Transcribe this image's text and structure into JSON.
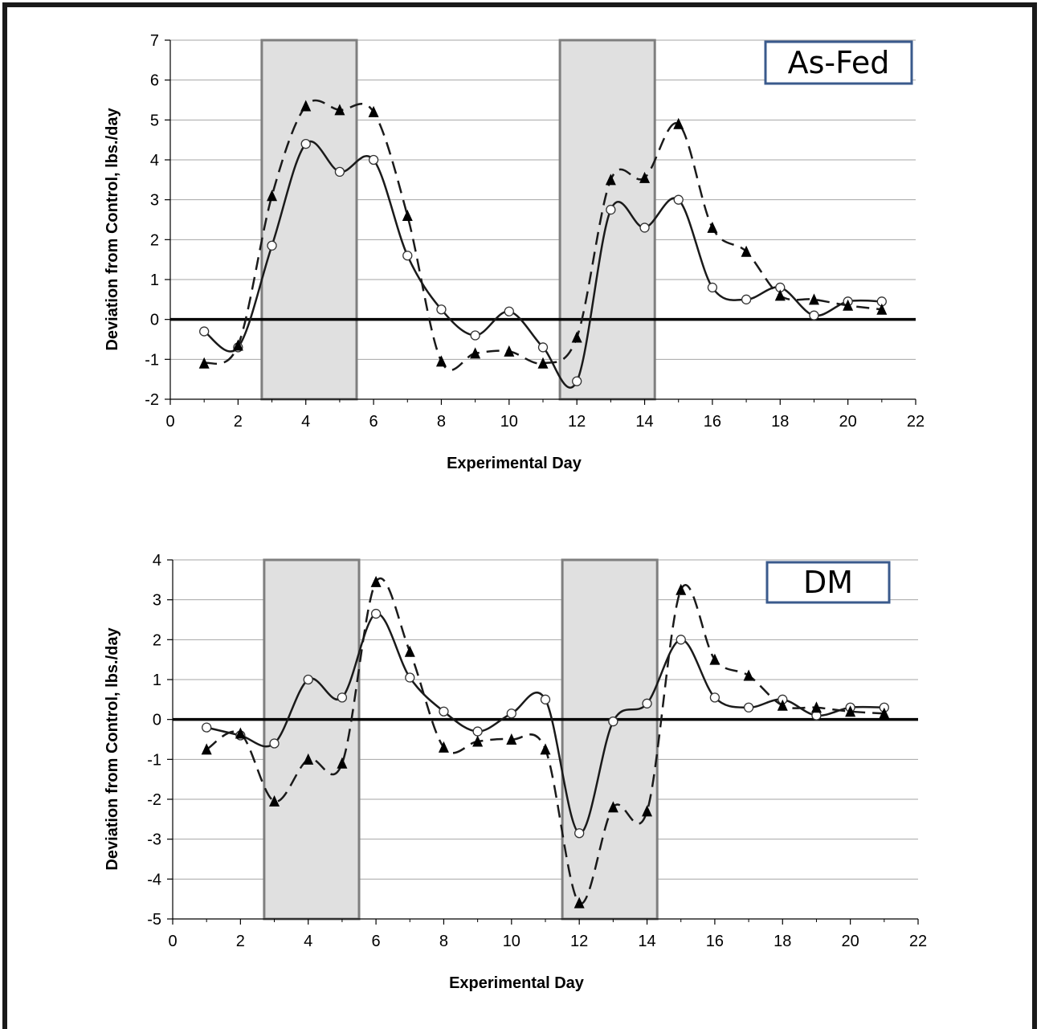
{
  "colors": {
    "shade_fill": "#e0e0e0",
    "shade_stroke": "#7f7f7f",
    "grid": "#a6a6a6",
    "series_a": "#1a1a1a",
    "series_b": "#1a1a1a",
    "tag_border": "#3a5a8c"
  },
  "chart_data": [
    {
      "type": "line",
      "tag": "As-Fed",
      "title": "",
      "xlabel": "Experimental Day",
      "ylabel": "Deviation from Control, lbs./day",
      "xlim": [
        0,
        22
      ],
      "ylim": [
        -2,
        7
      ],
      "xticks": [
        0,
        2,
        4,
        6,
        8,
        10,
        12,
        14,
        16,
        18,
        20,
        22
      ],
      "yticks": [
        -2,
        -1,
        0,
        1,
        2,
        3,
        4,
        5,
        6,
        7
      ],
      "grid": true,
      "shaded_ranges": [
        [
          2.7,
          5.5
        ],
        [
          11.5,
          14.3
        ]
      ],
      "series": [
        {
          "marker": "open-circle",
          "line": "solid",
          "x": [
            1,
            2,
            3,
            4,
            5,
            6,
            7,
            8,
            9,
            10,
            11,
            12,
            13,
            14,
            15,
            16,
            17,
            18,
            19,
            20,
            21
          ],
          "values": [
            -0.3,
            -0.7,
            1.85,
            4.4,
            3.7,
            4.0,
            1.6,
            0.25,
            -0.4,
            0.2,
            -0.7,
            -1.55,
            2.75,
            2.3,
            3.0,
            0.8,
            0.5,
            0.8,
            0.1,
            0.45,
            0.45
          ]
        },
        {
          "marker": "filled-triangle",
          "line": "dashed",
          "x": [
            1,
            2,
            3,
            4,
            5,
            6,
            7,
            8,
            9,
            10,
            11,
            12,
            13,
            14,
            15,
            16,
            17,
            18,
            19,
            20,
            21
          ],
          "values": [
            -1.1,
            -0.65,
            3.1,
            5.35,
            5.25,
            5.2,
            2.6,
            -1.05,
            -0.85,
            -0.8,
            -1.1,
            -0.45,
            3.5,
            3.55,
            4.9,
            2.3,
            1.7,
            0.6,
            0.5,
            0.35,
            0.25
          ]
        }
      ]
    },
    {
      "type": "line",
      "tag": "DM",
      "title": "",
      "xlabel": "Experimental Day",
      "ylabel": "Deviation from Control, lbs./day",
      "xlim": [
        0,
        22
      ],
      "ylim": [
        -5,
        4
      ],
      "xticks": [
        0,
        2,
        4,
        6,
        8,
        10,
        12,
        14,
        16,
        18,
        20,
        22
      ],
      "yticks": [
        -5,
        -4,
        -3,
        -2,
        -1,
        0,
        1,
        2,
        3,
        4
      ],
      "grid": true,
      "shaded_ranges": [
        [
          2.7,
          5.5
        ],
        [
          11.5,
          14.3
        ]
      ],
      "series": [
        {
          "marker": "open-circle",
          "line": "solid",
          "x": [
            1,
            2,
            3,
            4,
            5,
            6,
            7,
            8,
            9,
            10,
            11,
            12,
            13,
            14,
            15,
            16,
            17,
            18,
            19,
            20,
            21
          ],
          "values": [
            -0.2,
            -0.4,
            -0.6,
            1.0,
            0.55,
            2.65,
            1.05,
            0.2,
            -0.3,
            0.15,
            0.5,
            -2.85,
            -0.05,
            0.4,
            2.0,
            0.55,
            0.3,
            0.5,
            0.1,
            0.3,
            0.3
          ]
        },
        {
          "marker": "filled-triangle",
          "line": "dashed",
          "x": [
            1,
            2,
            3,
            4,
            5,
            6,
            7,
            8,
            9,
            10,
            11,
            12,
            13,
            14,
            15,
            16,
            17,
            18,
            19,
            20,
            21
          ],
          "values": [
            -0.75,
            -0.35,
            -2.05,
            -1.0,
            -1.1,
            3.45,
            1.7,
            -0.7,
            -0.55,
            -0.5,
            -0.75,
            -4.6,
            -2.2,
            -2.3,
            3.25,
            1.5,
            1.1,
            0.35,
            0.3,
            0.2,
            0.15
          ]
        }
      ]
    }
  ]
}
